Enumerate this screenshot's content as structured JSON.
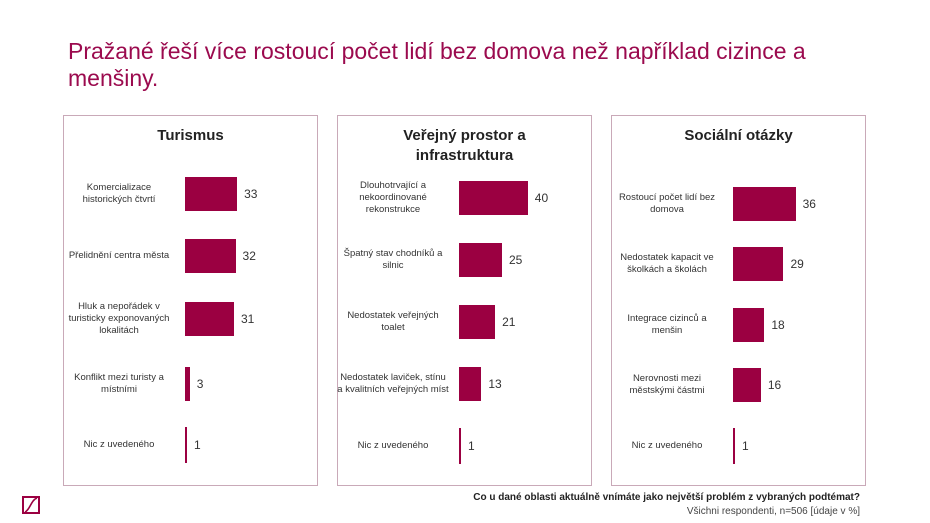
{
  "title": "Pražané řeší více rostoucí počet lidí bez domova než například cizince a menšiny.",
  "footer": {
    "question": "Co u dané oblasti aktuálně vnímáte jako největší problém z vybraných podtémat?",
    "note": "Všichni respondenti, n=506 [údaje v %]"
  },
  "colors": {
    "bar": "#9b0041",
    "title": "#9b0a4e"
  },
  "chart_data": [
    {
      "type": "bar",
      "orientation": "horizontal",
      "title": "Turismus",
      "categories": [
        "Komercializace historických čtvrtí",
        "Přelidnění centra města",
        "Hluk a nepořádek v turisticky exponovaných lokalitách",
        "Konflikt mezi turisty a místními",
        "Nic z uvedeného"
      ],
      "values": [
        33,
        32,
        31,
        3,
        1
      ]
    },
    {
      "type": "bar",
      "orientation": "horizontal",
      "title": "Veřejný prostor a infrastruktura",
      "categories": [
        "Dlouhotrvající a nekoordinované rekonstrukce",
        "Špatný stav chodníků a silnic",
        "Nedostatek veřejných toalet",
        "Nedostatek laviček, stínu a kvalitních veřejných míst",
        "Nic z uvedeného"
      ],
      "values": [
        40,
        25,
        21,
        13,
        1
      ]
    },
    {
      "type": "bar",
      "orientation": "horizontal",
      "title": "Sociální otázky",
      "categories": [
        "Rostoucí počet lidí bez domova",
        "Nedostatek kapacit ve školkách a školách",
        "Integrace cizinců a menšin",
        "Nerovnosti mezi městskými částmi",
        "Nic z uvedeného"
      ],
      "values": [
        36,
        29,
        18,
        16,
        1
      ]
    }
  ]
}
